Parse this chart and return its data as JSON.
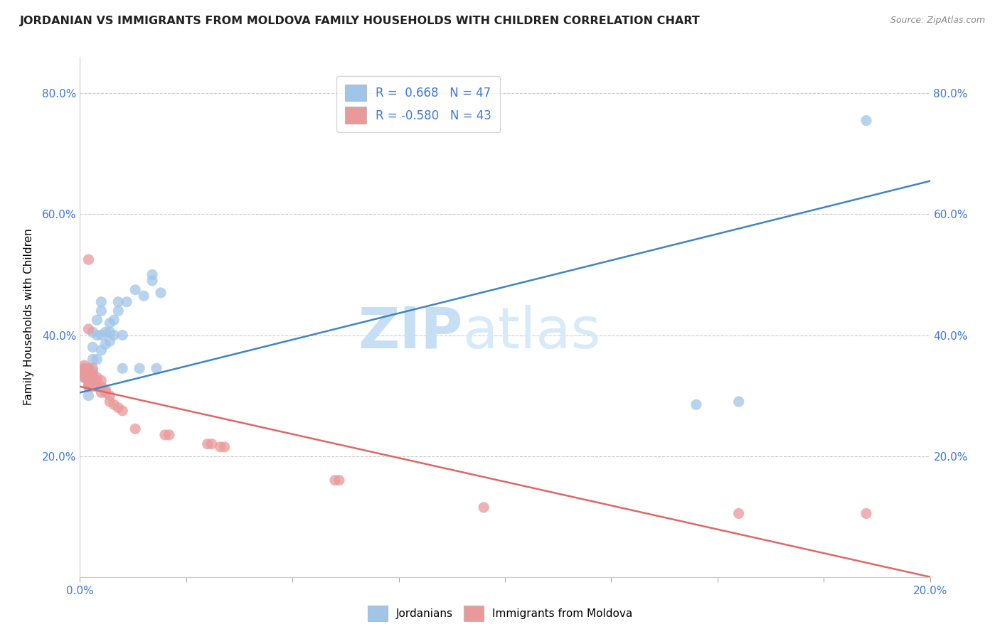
{
  "title": "JORDANIAN VS IMMIGRANTS FROM MOLDOVA FAMILY HOUSEHOLDS WITH CHILDREN CORRELATION CHART",
  "source": "Source: ZipAtlas.com",
  "ylabel": "Family Households with Children",
  "watermark_zip": "ZIP",
  "watermark_atlas": "atlas",
  "blue_color": "#9fc5e8",
  "pink_color": "#ea9999",
  "blue_line_color": "#3d85c8",
  "pink_line_color": "#e06666",
  "text_color": "#3c78d8",
  "blue_scatter": [
    [
      0.001,
      0.33
    ],
    [
      0.001,
      0.33
    ],
    [
      0.001,
      0.335
    ],
    [
      0.001,
      0.34
    ],
    [
      0.001,
      0.345
    ],
    [
      0.002,
      0.3
    ],
    [
      0.002,
      0.315
    ],
    [
      0.002,
      0.325
    ],
    [
      0.002,
      0.33
    ],
    [
      0.002,
      0.335
    ],
    [
      0.002,
      0.34
    ],
    [
      0.002,
      0.345
    ],
    [
      0.003,
      0.33
    ],
    [
      0.003,
      0.335
    ],
    [
      0.003,
      0.34
    ],
    [
      0.003,
      0.36
    ],
    [
      0.003,
      0.38
    ],
    [
      0.003,
      0.405
    ],
    [
      0.004,
      0.36
    ],
    [
      0.004,
      0.4
    ],
    [
      0.004,
      0.425
    ],
    [
      0.005,
      0.375
    ],
    [
      0.005,
      0.4
    ],
    [
      0.005,
      0.44
    ],
    [
      0.005,
      0.455
    ],
    [
      0.006,
      0.385
    ],
    [
      0.006,
      0.405
    ],
    [
      0.007,
      0.39
    ],
    [
      0.007,
      0.405
    ],
    [
      0.007,
      0.42
    ],
    [
      0.008,
      0.4
    ],
    [
      0.008,
      0.425
    ],
    [
      0.009,
      0.44
    ],
    [
      0.009,
      0.455
    ],
    [
      0.01,
      0.4
    ],
    [
      0.01,
      0.345
    ],
    [
      0.011,
      0.455
    ],
    [
      0.013,
      0.475
    ],
    [
      0.014,
      0.345
    ],
    [
      0.015,
      0.465
    ],
    [
      0.017,
      0.49
    ],
    [
      0.017,
      0.5
    ],
    [
      0.018,
      0.345
    ],
    [
      0.019,
      0.47
    ],
    [
      0.145,
      0.285
    ],
    [
      0.155,
      0.29
    ],
    [
      0.185,
      0.755
    ]
  ],
  "pink_scatter": [
    [
      0.001,
      0.33
    ],
    [
      0.001,
      0.335
    ],
    [
      0.001,
      0.34
    ],
    [
      0.001,
      0.345
    ],
    [
      0.001,
      0.35
    ],
    [
      0.002,
      0.315
    ],
    [
      0.002,
      0.32
    ],
    [
      0.002,
      0.325
    ],
    [
      0.002,
      0.33
    ],
    [
      0.002,
      0.335
    ],
    [
      0.002,
      0.345
    ],
    [
      0.002,
      0.41
    ],
    [
      0.002,
      0.525
    ],
    [
      0.003,
      0.315
    ],
    [
      0.003,
      0.325
    ],
    [
      0.003,
      0.33
    ],
    [
      0.003,
      0.335
    ],
    [
      0.003,
      0.345
    ],
    [
      0.004,
      0.315
    ],
    [
      0.004,
      0.325
    ],
    [
      0.004,
      0.33
    ],
    [
      0.005,
      0.305
    ],
    [
      0.005,
      0.315
    ],
    [
      0.005,
      0.325
    ],
    [
      0.006,
      0.305
    ],
    [
      0.006,
      0.31
    ],
    [
      0.007,
      0.29
    ],
    [
      0.007,
      0.3
    ],
    [
      0.008,
      0.285
    ],
    [
      0.009,
      0.28
    ],
    [
      0.01,
      0.275
    ],
    [
      0.013,
      0.245
    ],
    [
      0.02,
      0.235
    ],
    [
      0.021,
      0.235
    ],
    [
      0.03,
      0.22
    ],
    [
      0.031,
      0.22
    ],
    [
      0.033,
      0.215
    ],
    [
      0.034,
      0.215
    ],
    [
      0.06,
      0.16
    ],
    [
      0.061,
      0.16
    ],
    [
      0.095,
      0.115
    ],
    [
      0.155,
      0.105
    ],
    [
      0.185,
      0.105
    ]
  ],
  "blue_line_x": [
    0.0,
    0.2
  ],
  "blue_line_y": [
    0.305,
    0.655
  ],
  "pink_line_x": [
    0.0,
    0.2
  ],
  "pink_line_y": [
    0.315,
    0.0
  ],
  "xlim": [
    0.0,
    0.2
  ],
  "ylim": [
    0.0,
    0.86
  ],
  "yticks": [
    0.0,
    0.2,
    0.4,
    0.6,
    0.8
  ],
  "ytick_labels": [
    "",
    "20.0%",
    "40.0%",
    "60.0%",
    "80.0%"
  ],
  "xticks": [
    0.0,
    0.025,
    0.05,
    0.075,
    0.1,
    0.125,
    0.15,
    0.175,
    0.2
  ],
  "xtick_labels": [
    "0.0%",
    "",
    "",
    "",
    "",
    "",
    "",
    "",
    "20.0%"
  ]
}
